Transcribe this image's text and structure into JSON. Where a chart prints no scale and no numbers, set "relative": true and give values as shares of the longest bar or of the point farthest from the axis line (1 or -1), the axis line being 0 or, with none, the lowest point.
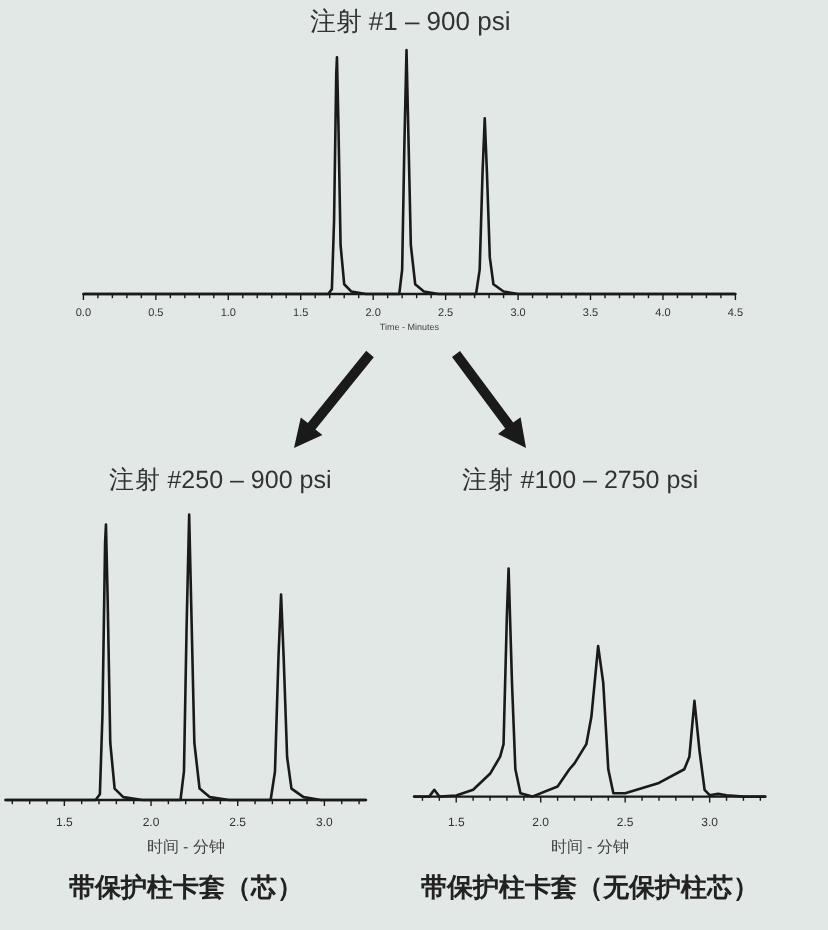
{
  "chart_data": [
    {
      "type": "line",
      "relative": true,
      "title": "注射 #1 – 900 psi",
      "xlabel": "Time - Minutes",
      "color": "#1a1a1a",
      "xlim": [
        0,
        4.5
      ],
      "xticks": [
        {
          "value": 0,
          "label": "0.0"
        },
        {
          "value": 0.1,
          "label": null
        },
        {
          "value": 0.2,
          "label": null
        },
        {
          "value": 0.3,
          "label": null
        },
        {
          "value": 0.4,
          "label": null
        },
        0.5,
        {
          "value": 0.6,
          "label": null
        },
        {
          "value": 0.7,
          "label": null
        },
        {
          "value": 0.8,
          "label": null
        },
        {
          "value": 0.9,
          "label": null
        },
        {
          "value": 1,
          "label": "1.0"
        },
        {
          "value": 1.1,
          "label": null
        },
        {
          "value": 1.2,
          "label": null
        },
        {
          "value": 1.3,
          "label": null
        },
        {
          "value": 1.4,
          "label": null
        },
        1.5,
        {
          "value": 1.6,
          "label": null
        },
        {
          "value": 1.7,
          "label": null
        },
        {
          "value": 1.8,
          "label": null
        },
        {
          "value": 1.9,
          "label": null
        },
        {
          "value": 2,
          "label": "2.0"
        },
        {
          "value": 2.1,
          "label": null
        },
        {
          "value": 2.2,
          "label": null
        },
        {
          "value": 2.3,
          "label": null
        },
        {
          "value": 2.4,
          "label": null
        },
        2.5,
        {
          "value": 2.6,
          "label": null
        },
        {
          "value": 2.7,
          "label": null
        },
        {
          "value": 2.8,
          "label": null
        },
        {
          "value": 2.9,
          "label": null
        },
        {
          "value": 3,
          "label": "3.0"
        },
        {
          "value": 3.1,
          "label": null
        },
        {
          "value": 3.2,
          "label": null
        },
        {
          "value": 3.3,
          "label": null
        },
        {
          "value": 3.4,
          "label": null
        },
        3.5,
        {
          "value": 3.6,
          "label": null
        },
        {
          "value": 3.7,
          "label": null
        },
        {
          "value": 3.8,
          "label": null
        },
        {
          "value": 3.9,
          "label": null
        },
        {
          "value": 4,
          "label": "4.0"
        },
        {
          "value": 4.1,
          "label": null
        },
        {
          "value": 4.2,
          "label": null
        },
        {
          "value": 4.3,
          "label": null
        },
        {
          "value": 4.4,
          "label": null
        },
        4.5
      ],
      "x": [
        0,
        1.69,
        1.715,
        1.73,
        1.745,
        1.75,
        1.76,
        1.775,
        1.8,
        1.85,
        1.95,
        2.18,
        2.2,
        2.215,
        2.23,
        2.245,
        2.26,
        2.29,
        2.35,
        2.45,
        2.71,
        2.735,
        2.755,
        2.77,
        2.785,
        2.805,
        2.83,
        2.9,
        3.0,
        4.5
      ],
      "values": [
        0,
        0,
        0.02,
        0.3,
        0.9,
        0.97,
        0.7,
        0.2,
        0.04,
        0.01,
        0,
        0,
        0.1,
        0.6,
        1,
        0.6,
        0.2,
        0.04,
        0.01,
        0,
        0,
        0.1,
        0.5,
        0.72,
        0.5,
        0.15,
        0.04,
        0.01,
        0,
        0
      ]
    },
    {
      "type": "line",
      "relative": true,
      "title": "注射 #250 – 900 psi",
      "xlabel": "时间 - 分钟",
      "color": "#1a1a1a",
      "annotations": [
        "带保护柱卡套（芯）"
      ],
      "xlim": [
        1.16,
        3.24
      ],
      "xticks": [
        {
          "value": 1.2,
          "label": null
        },
        {
          "value": 1.3,
          "label": null
        },
        {
          "value": 1.4,
          "label": null
        },
        1.5,
        {
          "value": 1.6,
          "label": null
        },
        {
          "value": 1.7,
          "label": null
        },
        {
          "value": 1.8,
          "label": null
        },
        {
          "value": 1.9,
          "label": null
        },
        {
          "value": 2,
          "label": "2.0"
        },
        {
          "value": 2.1,
          "label": null
        },
        {
          "value": 2.2,
          "label": null
        },
        {
          "value": 2.3,
          "label": null
        },
        {
          "value": 2.4,
          "label": null
        },
        2.5,
        {
          "value": 2.6,
          "label": null
        },
        {
          "value": 2.7,
          "label": null
        },
        {
          "value": 2.8,
          "label": null
        },
        {
          "value": 2.9,
          "label": null
        },
        {
          "value": 3,
          "label": "3.0"
        },
        {
          "value": 3.1,
          "label": null
        },
        {
          "value": 3.2,
          "label": null
        }
      ],
      "x": [
        1.16,
        1.68,
        1.705,
        1.72,
        1.735,
        1.74,
        1.75,
        1.765,
        1.79,
        1.84,
        1.95,
        2.17,
        2.19,
        2.205,
        2.22,
        2.235,
        2.25,
        2.28,
        2.34,
        2.45,
        2.69,
        2.715,
        2.735,
        2.75,
        2.765,
        2.785,
        2.81,
        2.88,
        2.98,
        3.24
      ],
      "values": [
        0,
        0,
        0.02,
        0.3,
        0.9,
        0.965,
        0.7,
        0.2,
        0.04,
        0.01,
        0,
        0,
        0.1,
        0.6,
        1,
        0.6,
        0.2,
        0.04,
        0.01,
        0,
        0,
        0.1,
        0.5,
        0.72,
        0.5,
        0.15,
        0.04,
        0.01,
        0,
        0
      ]
    },
    {
      "type": "line",
      "relative": true,
      "title": "注射 #100 – 2750 psi",
      "xlabel": "时间 - 分钟",
      "color": "#1a1a1a",
      "annotations": [
        "带保护柱卡套（无保护柱芯）"
      ],
      "xlim": [
        1.25,
        3.33
      ],
      "xticks": [
        {
          "value": 1.3,
          "label": null
        },
        {
          "value": 1.4,
          "label": null
        },
        1.5,
        {
          "value": 1.6,
          "label": null
        },
        {
          "value": 1.7,
          "label": null
        },
        {
          "value": 1.8,
          "label": null
        },
        {
          "value": 1.9,
          "label": null
        },
        {
          "value": 2,
          "label": "2.0"
        },
        {
          "value": 2.1,
          "label": null
        },
        {
          "value": 2.2,
          "label": null
        },
        {
          "value": 2.3,
          "label": null
        },
        {
          "value": 2.4,
          "label": null
        },
        2.5,
        {
          "value": 2.6,
          "label": null
        },
        {
          "value": 2.7,
          "label": null
        },
        {
          "value": 2.8,
          "label": null
        },
        {
          "value": 2.9,
          "label": null
        },
        {
          "value": 3,
          "label": "3.0"
        },
        {
          "value": 3.1,
          "label": null
        },
        {
          "value": 3.2,
          "label": null
        },
        {
          "value": 3.3,
          "label": null
        }
      ],
      "x": [
        1.25,
        1.34,
        1.37,
        1.4,
        1.5,
        1.6,
        1.7,
        1.76,
        1.78,
        1.8,
        1.81,
        1.83,
        1.85,
        1.88,
        1.95,
        2.1,
        2.17,
        2.2,
        2.27,
        2.3,
        2.34,
        2.37,
        2.4,
        2.43,
        2.5,
        2.7,
        2.85,
        2.88,
        2.91,
        2.94,
        2.97,
        3.0,
        3.05,
        3.1,
        3.2,
        3.33
      ],
      "values": [
        0,
        0,
        0.03,
        0,
        0.005,
        0.03,
        0.1,
        0.175,
        0.23,
        0.8,
        1,
        0.5,
        0.12,
        0.015,
        0,
        0.044,
        0.12,
        0.146,
        0.23,
        0.35,
        0.66,
        0.5,
        0.12,
        0.015,
        0.015,
        0.06,
        0.12,
        0.175,
        0.42,
        0.2,
        0.03,
        0.006,
        0.012,
        0.006,
        0,
        0
      ]
    }
  ]
}
